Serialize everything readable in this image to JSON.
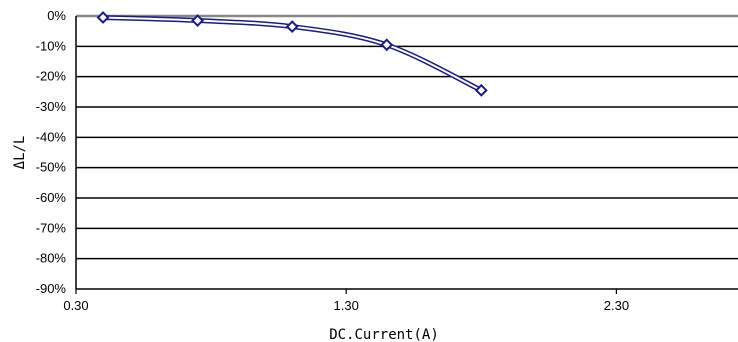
{
  "chart_data": {
    "type": "line",
    "xlabel": "DC.Current(A)",
    "ylabel": "ΔL/L",
    "xlim": [
      0.3,
      2.75
    ],
    "ylim": [
      -90,
      0
    ],
    "x_ticks": [
      0.3,
      1.3,
      2.3
    ],
    "x_tick_labels": [
      "0.30",
      "1.30",
      "2.30"
    ],
    "y_ticks": [
      0,
      -10,
      -20,
      -30,
      -40,
      -50,
      -60,
      -70,
      -80,
      -90
    ],
    "y_tick_labels": [
      "0%",
      "-10%",
      "-20%",
      "-30%",
      "-40%",
      "-50%",
      "-60%",
      "-70%",
      "-80%",
      "-90%"
    ],
    "grid": true,
    "series": [
      {
        "x": [
          0.4,
          0.75,
          1.1,
          1.45,
          1.8
        ],
        "y": [
          -0.5,
          -1.5,
          -3.5,
          -9.5,
          -24.5
        ],
        "marker": "diamond",
        "line_style": "double",
        "color": "#1a1a8c"
      }
    ]
  }
}
